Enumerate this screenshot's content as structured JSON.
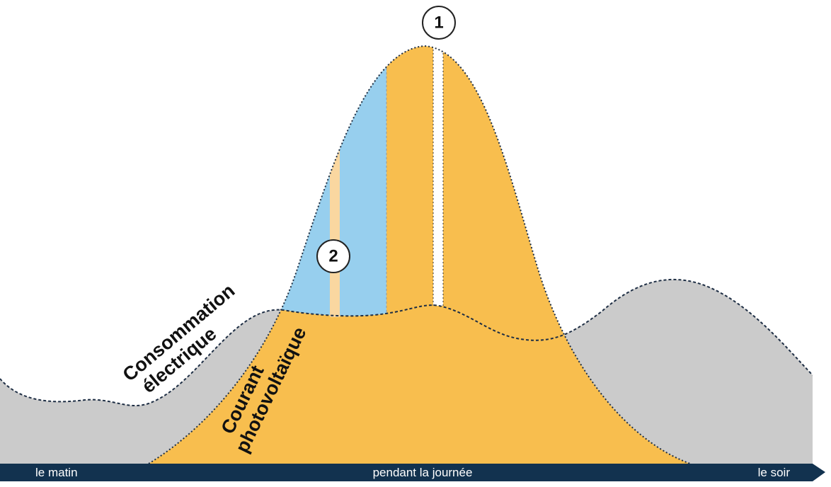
{
  "markers": [
    {
      "label": "1"
    },
    {
      "label": "2"
    }
  ],
  "curves": {
    "consumption": [
      "Consommation",
      "électrique"
    ],
    "solar": [
      "Courant",
      "photovoltaïque"
    ]
  },
  "timeline": [
    "le matin",
    "pendant la journée",
    "le soir"
  ]
}
